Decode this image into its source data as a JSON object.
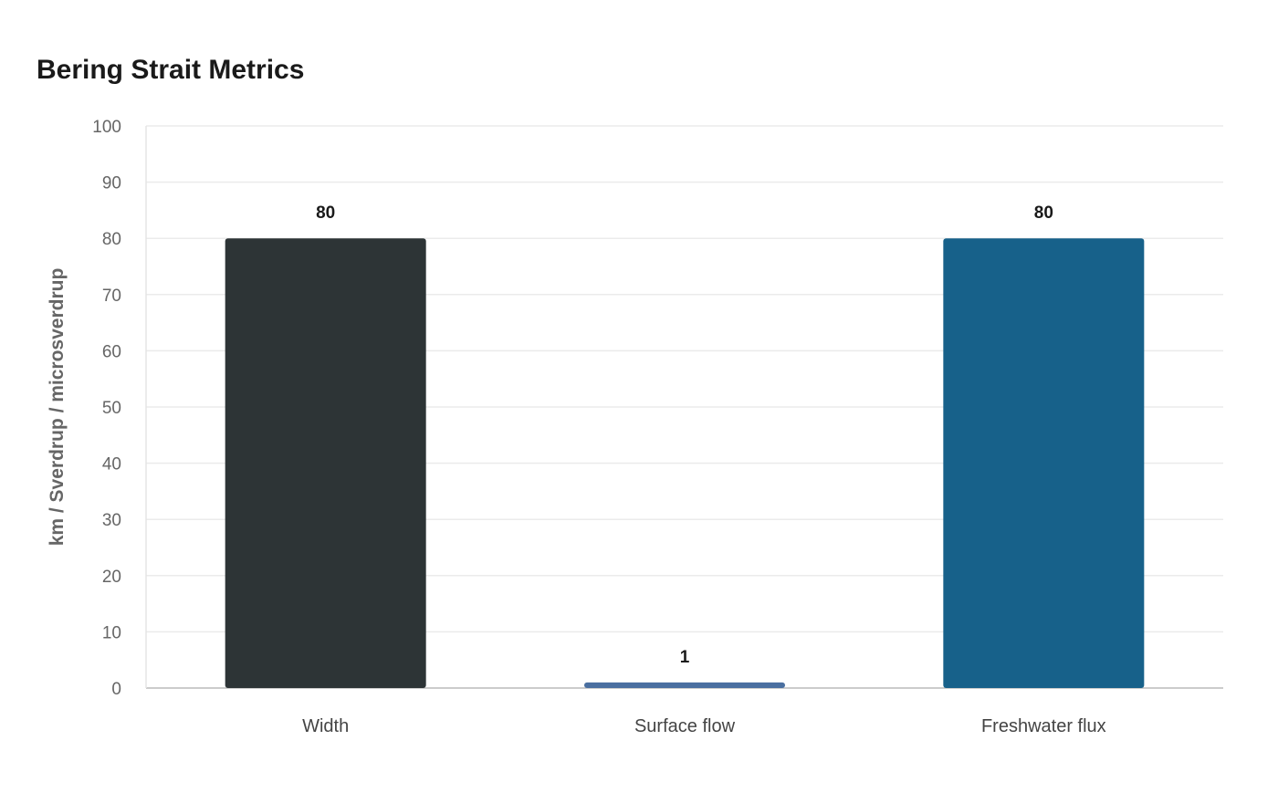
{
  "chart_data": {
    "type": "bar",
    "title": "Bering Strait Metrics",
    "xlabel": "",
    "ylabel": "km / Sverdrup / microsverdrup",
    "categories": [
      "Width",
      "Surface flow",
      "Freshwater flux"
    ],
    "values": [
      80,
      1,
      80
    ],
    "colors": [
      "#2d3436",
      "#4a6fa0",
      "#17618a"
    ],
    "data_labels": [
      "80",
      "1",
      "80"
    ],
    "ylim": [
      0,
      100
    ],
    "yticks": [
      0,
      10,
      20,
      30,
      40,
      50,
      60,
      70,
      80,
      90,
      100
    ],
    "grid": true,
    "legend": "none"
  }
}
